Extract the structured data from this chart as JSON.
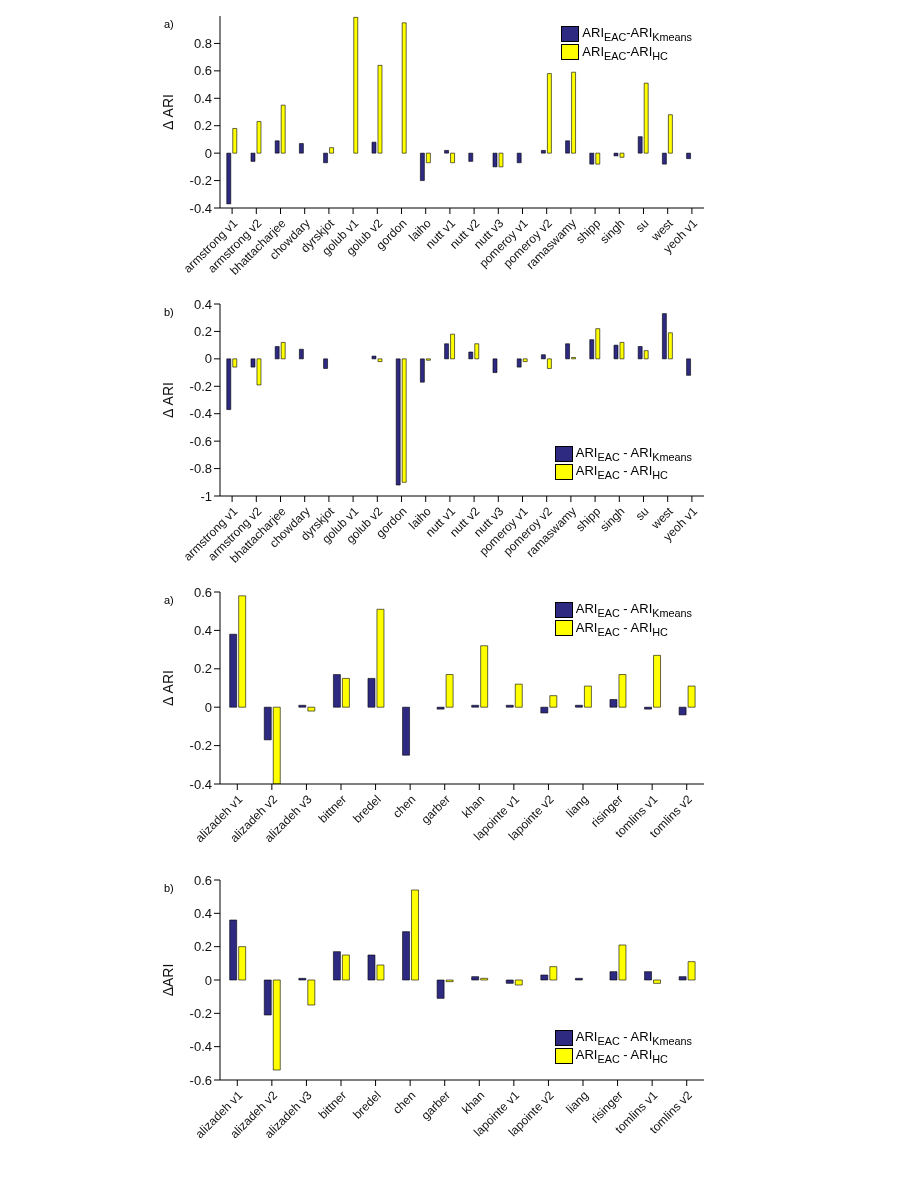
{
  "chart_data": [
    {
      "type": "bar",
      "annotations": [
        "a)"
      ],
      "ylabel": "Δ ARI",
      "categories": [
        "armstrong v1",
        "armstrong v2",
        "bhattacharjee",
        "chowdary",
        "dyrskjot",
        "golub v1",
        "golub v2",
        "gordon",
        "laiho",
        "nutt v1",
        "nutt v2",
        "nutt v3",
        "pomeroy v1",
        "pomeroy v2",
        "ramaswamy",
        "shipp",
        "singh",
        "su",
        "west",
        "yeoh v1"
      ],
      "series": [
        {
          "name": "ARI$_{EAC}$-ARI$_{Kmeans}$",
          "color": "#2e2a82",
          "values": [
            -0.37,
            -0.06,
            0.09,
            0.07,
            -0.07,
            0,
            0.08,
            0,
            -0.2,
            0.02,
            -0.06,
            -0.1,
            -0.07,
            0.02,
            0.09,
            -0.08,
            -0.02,
            0.12,
            -0.08,
            -0.04
          ]
        },
        {
          "name": "ARI$_{EAC}$-ARI$_{HC}$",
          "color": "#ffff00",
          "values": [
            0.18,
            0.23,
            0.35,
            0,
            0.04,
            0.99,
            0.64,
            0.95,
            -0.07,
            -0.07,
            0,
            -0.1,
            0,
            0.58,
            0.59,
            -0.08,
            -0.03,
            0.51,
            0.28,
            0
          ]
        }
      ],
      "ylim": [
        -0.4,
        1
      ],
      "yticks": [
        -0.4,
        -0.2,
        0,
        0.2,
        0.4,
        0.6,
        0.8
      ],
      "legend": "top right",
      "grid": false
    },
    {
      "type": "bar",
      "annotations": [
        "b)"
      ],
      "ylabel": "Δ ARI",
      "categories": [
        "armstrong v1",
        "armstrong v2",
        "bhattacharjee",
        "chowdary",
        "dyrskjot",
        "golub v1",
        "golub v2",
        "gordon",
        "laiho",
        "nutt v1",
        "nutt v2",
        "nutt v3",
        "pomeroy v1",
        "pomeroy v2",
        "ramaswamy",
        "shipp",
        "singh",
        "su",
        "west",
        "yeoh v1"
      ],
      "series": [
        {
          "name": "ARI$_{EAC}$ - ARI$_{Kmeans}$",
          "color": "#2e2a82",
          "values": [
            -0.37,
            -0.06,
            0.09,
            0.07,
            -0.07,
            0,
            0.02,
            -0.92,
            -0.17,
            0.11,
            0.05,
            -0.1,
            -0.06,
            0.03,
            0.11,
            0.14,
            0.1,
            0.09,
            0.33,
            -0.12
          ]
        },
        {
          "name": "ARI$_{EAC}$ - ARI$_{HC}$",
          "color": "#ffff00",
          "values": [
            -0.06,
            -0.19,
            0.12,
            0,
            0,
            0,
            -0.02,
            -0.9,
            -0.01,
            0.18,
            0.11,
            0,
            -0.02,
            -0.07,
            0.01,
            0.22,
            0.12,
            0.06,
            0.19,
            0
          ]
        }
      ],
      "ylim": [
        -1,
        0.4
      ],
      "yticks": [
        -1,
        -0.8,
        -0.6,
        -0.4,
        -0.2,
        0,
        0.2,
        0.4
      ],
      "legend": "bottom right",
      "grid": false
    },
    {
      "type": "bar",
      "annotations": [
        "a)"
      ],
      "ylabel": "Δ ARI",
      "categories": [
        "alizadeh v1",
        "alizadeh v2",
        "alizadeh v3",
        "bittner",
        "bredel",
        "chen",
        "garber",
        "khan",
        "lapointe v1",
        "lapointe v2",
        "liang",
        "risinger",
        "tomlins v1",
        "tomlins v2"
      ],
      "series": [
        {
          "name": "ARI$_{EAC}$ - ARI$_{Kmeans}$",
          "color": "#2e2a82",
          "values": [
            0.38,
            -0.17,
            0.01,
            0.17,
            0.15,
            -0.25,
            -0.01,
            0.01,
            0.01,
            -0.03,
            0.01,
            0.04,
            -0.01,
            -0.04
          ]
        },
        {
          "name": "ARI$_{EAC}$ - ARI$_{HC}$",
          "color": "#ffff00",
          "values": [
            0.58,
            -0.4,
            -0.02,
            0.15,
            0.51,
            0,
            0.17,
            0.32,
            0.12,
            0.06,
            0.11,
            0.17,
            0.27,
            0.11
          ]
        }
      ],
      "ylim": [
        -0.4,
        0.6
      ],
      "yticks": [
        -0.4,
        -0.2,
        0,
        0.2,
        0.4,
        0.6
      ],
      "legend": "top right",
      "grid": false
    },
    {
      "type": "bar",
      "annotations": [
        "b)"
      ],
      "ylabel": "ΔARI",
      "categories": [
        "alizadeh v1",
        "alizadeh v2",
        "alizadeh v3",
        "bittner",
        "bredel",
        "chen",
        "garber",
        "khan",
        "lapointe v1",
        "lapointe v2",
        "liang",
        "risinger",
        "tomlins v1",
        "tomlins v2"
      ],
      "series": [
        {
          "name": "ARI$_{EAC}$ - ARI$_{Kmeans}$",
          "color": "#2e2a82",
          "values": [
            0.36,
            -0.21,
            0.01,
            0.17,
            0.15,
            0.29,
            -0.11,
            0.02,
            -0.02,
            0.03,
            0.01,
            0.05,
            0.05,
            0.02
          ]
        },
        {
          "name": "ARI$_{EAC}$ - ARI$_{HC}$",
          "color": "#ffff00",
          "values": [
            0.2,
            -0.54,
            -0.15,
            0.15,
            0.09,
            0.54,
            -0.01,
            0.01,
            -0.03,
            0.08,
            0,
            0.21,
            -0.02,
            0.11
          ]
        }
      ],
      "ylim": [
        -0.6,
        0.6
      ],
      "yticks": [
        -0.6,
        -0.4,
        -0.2,
        0,
        0.2,
        0.4,
        0.6
      ],
      "legend": "bottom right",
      "grid": false
    }
  ]
}
